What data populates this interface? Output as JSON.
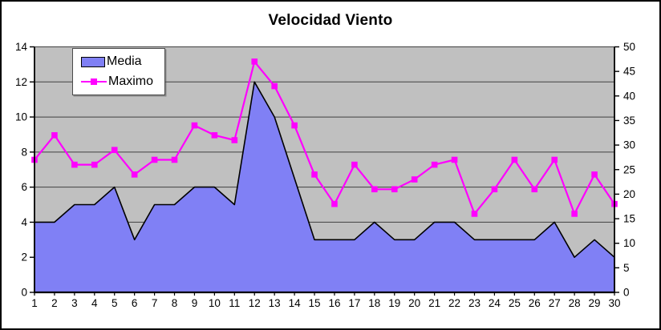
{
  "title": "Velocidad Viento",
  "legend": {
    "items": [
      {
        "label": "Media",
        "swatch": "area-swatch"
      },
      {
        "label": "Maximo",
        "swatch": "line-swatch"
      }
    ]
  },
  "colors": {
    "media_fill": "#8080f5",
    "media_outline": "#000000",
    "maximo_line": "#ff00ff",
    "plot_background": "#c0c0c0",
    "gridline": "#404040",
    "axis": "#000000",
    "text": "#000000"
  },
  "chart_data": {
    "type": "area",
    "title": "Velocidad Viento",
    "x": [
      1,
      2,
      3,
      4,
      5,
      6,
      7,
      8,
      9,
      10,
      11,
      12,
      13,
      14,
      15,
      16,
      17,
      18,
      19,
      20,
      21,
      22,
      23,
      24,
      25,
      26,
      27,
      28,
      29,
      30
    ],
    "series": [
      {
        "name": "Media",
        "type": "area",
        "axis": "left",
        "values": [
          4,
          4,
          5,
          5,
          6,
          3,
          5,
          5,
          6,
          6,
          5,
          12,
          10,
          6.5,
          3,
          3,
          3,
          4,
          3,
          3,
          4,
          4,
          3,
          3,
          3,
          3,
          4,
          2,
          3,
          2
        ]
      },
      {
        "name": "Maximo",
        "type": "line",
        "axis": "right",
        "values": [
          27,
          32,
          26,
          26,
          29,
          24,
          27,
          27,
          34,
          32,
          31,
          47,
          42,
          34,
          24,
          18,
          26,
          21,
          21,
          23,
          26,
          27,
          16,
          21,
          27,
          21,
          27,
          16,
          24,
          18
        ]
      }
    ],
    "left_axis": {
      "min": 0,
      "max": 14,
      "ticks": [
        0,
        2,
        4,
        6,
        8,
        10,
        12,
        14
      ]
    },
    "right_axis": {
      "min": 0,
      "max": 50,
      "ticks": [
        0,
        5,
        10,
        15,
        20,
        25,
        30,
        35,
        40,
        45,
        50
      ]
    },
    "x_axis": {
      "ticks": [
        1,
        2,
        3,
        4,
        5,
        6,
        7,
        8,
        9,
        10,
        11,
        12,
        13,
        14,
        15,
        16,
        17,
        18,
        19,
        20,
        21,
        22,
        23,
        24,
        25,
        26,
        27,
        28,
        29,
        30
      ]
    },
    "grid": true,
    "legend_position": "top-left-inside"
  }
}
